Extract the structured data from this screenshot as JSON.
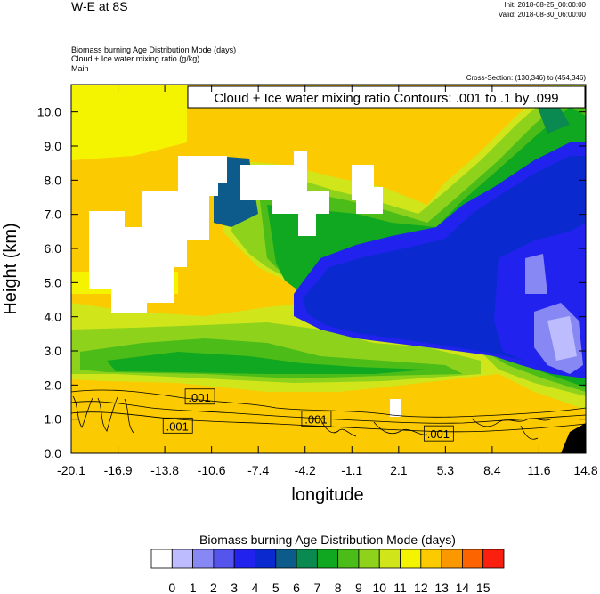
{
  "header": {
    "title": "W-E at 8S",
    "init": "Init: 2018-08-25_00:00:00",
    "valid": "Valid: 2018-08-30_06:00:00",
    "field_lines": [
      "Biomass burning Age Distribution Mode   (days)",
      "Cloud + Ice water mixing ratio   (g/kg)",
      "Main"
    ],
    "cross_section": "Cross-Section: (130,346) to (454,346)"
  },
  "chart_data": {
    "type": "heatmap",
    "title": "",
    "contour_label": "Cloud + Ice water mixing ratio Contours: .001 to .1 by .099",
    "xlabel": "longitude",
    "ylabel": "Height (km)",
    "x_ticks": [
      "-20.1",
      "-16.9",
      "-13.8",
      "-10.6",
      "-7.4",
      "-4.2",
      "-1.1",
      "2.1",
      "5.3",
      "8.4",
      "11.6",
      "14.8"
    ],
    "y_ticks": [
      "0.0",
      "1.0",
      "2.0",
      "3.0",
      "4.0",
      "5.0",
      "6.0",
      "7.0",
      "8.0",
      "9.0",
      "10.0"
    ],
    "xlim": [
      -20.1,
      14.8
    ],
    "ylim": [
      0,
      10.8
    ],
    "contour_value_labels": [
      {
        "text": ".001",
        "lon": -11.4,
        "z": 1.65
      },
      {
        "text": ".001",
        "lon": -12.9,
        "z": 0.8
      },
      {
        "text": ".001",
        "lon": -3.5,
        "z": 1.0
      },
      {
        "text": ".001",
        "lon": 4.8,
        "z": 0.57
      }
    ],
    "colorbar": {
      "title": "Biomass burning Age Distribution Mode  (days)",
      "labels": [
        "0",
        "1",
        "2",
        "3",
        "4",
        "5",
        "6",
        "7",
        "8",
        "9",
        "10",
        "11",
        "12",
        "13",
        "14",
        "15"
      ],
      "colors": [
        "#ffffff",
        "#bcbcff",
        "#8888f4",
        "#5555ee",
        "#2222ee",
        "#0a2ad0",
        "#0c5b8a",
        "#0a8a50",
        "#10a820",
        "#4cbc18",
        "#8ed21c",
        "#d0e61a",
        "#f4f400",
        "#fbca00",
        "#fb9800",
        "#fc6400",
        "#fa1f0f"
      ]
    }
  }
}
